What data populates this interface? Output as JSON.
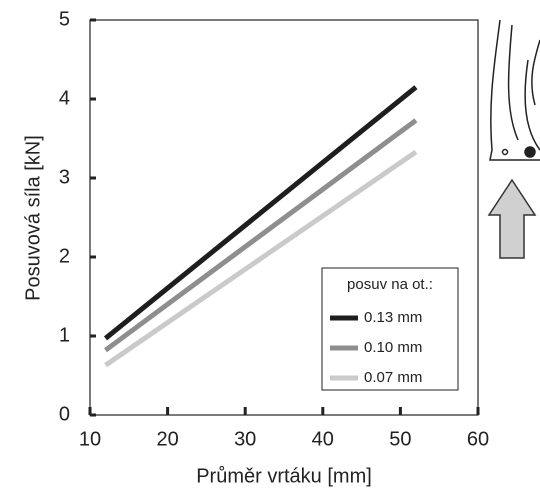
{
  "chart_data": {
    "type": "line",
    "x_label": "Průměr vrtáku [mm]",
    "y_label": "Posuvová síla [kN]",
    "x": [
      12,
      52
    ],
    "series": [
      {
        "name": "0.13 mm",
        "color": "#1e1e1e",
        "values": [
          0.97,
          4.15
        ]
      },
      {
        "name": "0.10 mm",
        "color": "#8e8e8e",
        "values": [
          0.82,
          3.73
        ]
      },
      {
        "name": "0.07 mm",
        "color": "#cacaca",
        "values": [
          0.63,
          3.33
        ]
      }
    ],
    "legend_title": "posuv na ot.:",
    "legend_position": "lower right",
    "xlim": [
      10,
      60
    ],
    "xticks": [
      10,
      20,
      30,
      40,
      50,
      60
    ],
    "ylim": [
      0,
      5
    ],
    "yticks": [
      0,
      1,
      2,
      3,
      4,
      5
    ]
  }
}
